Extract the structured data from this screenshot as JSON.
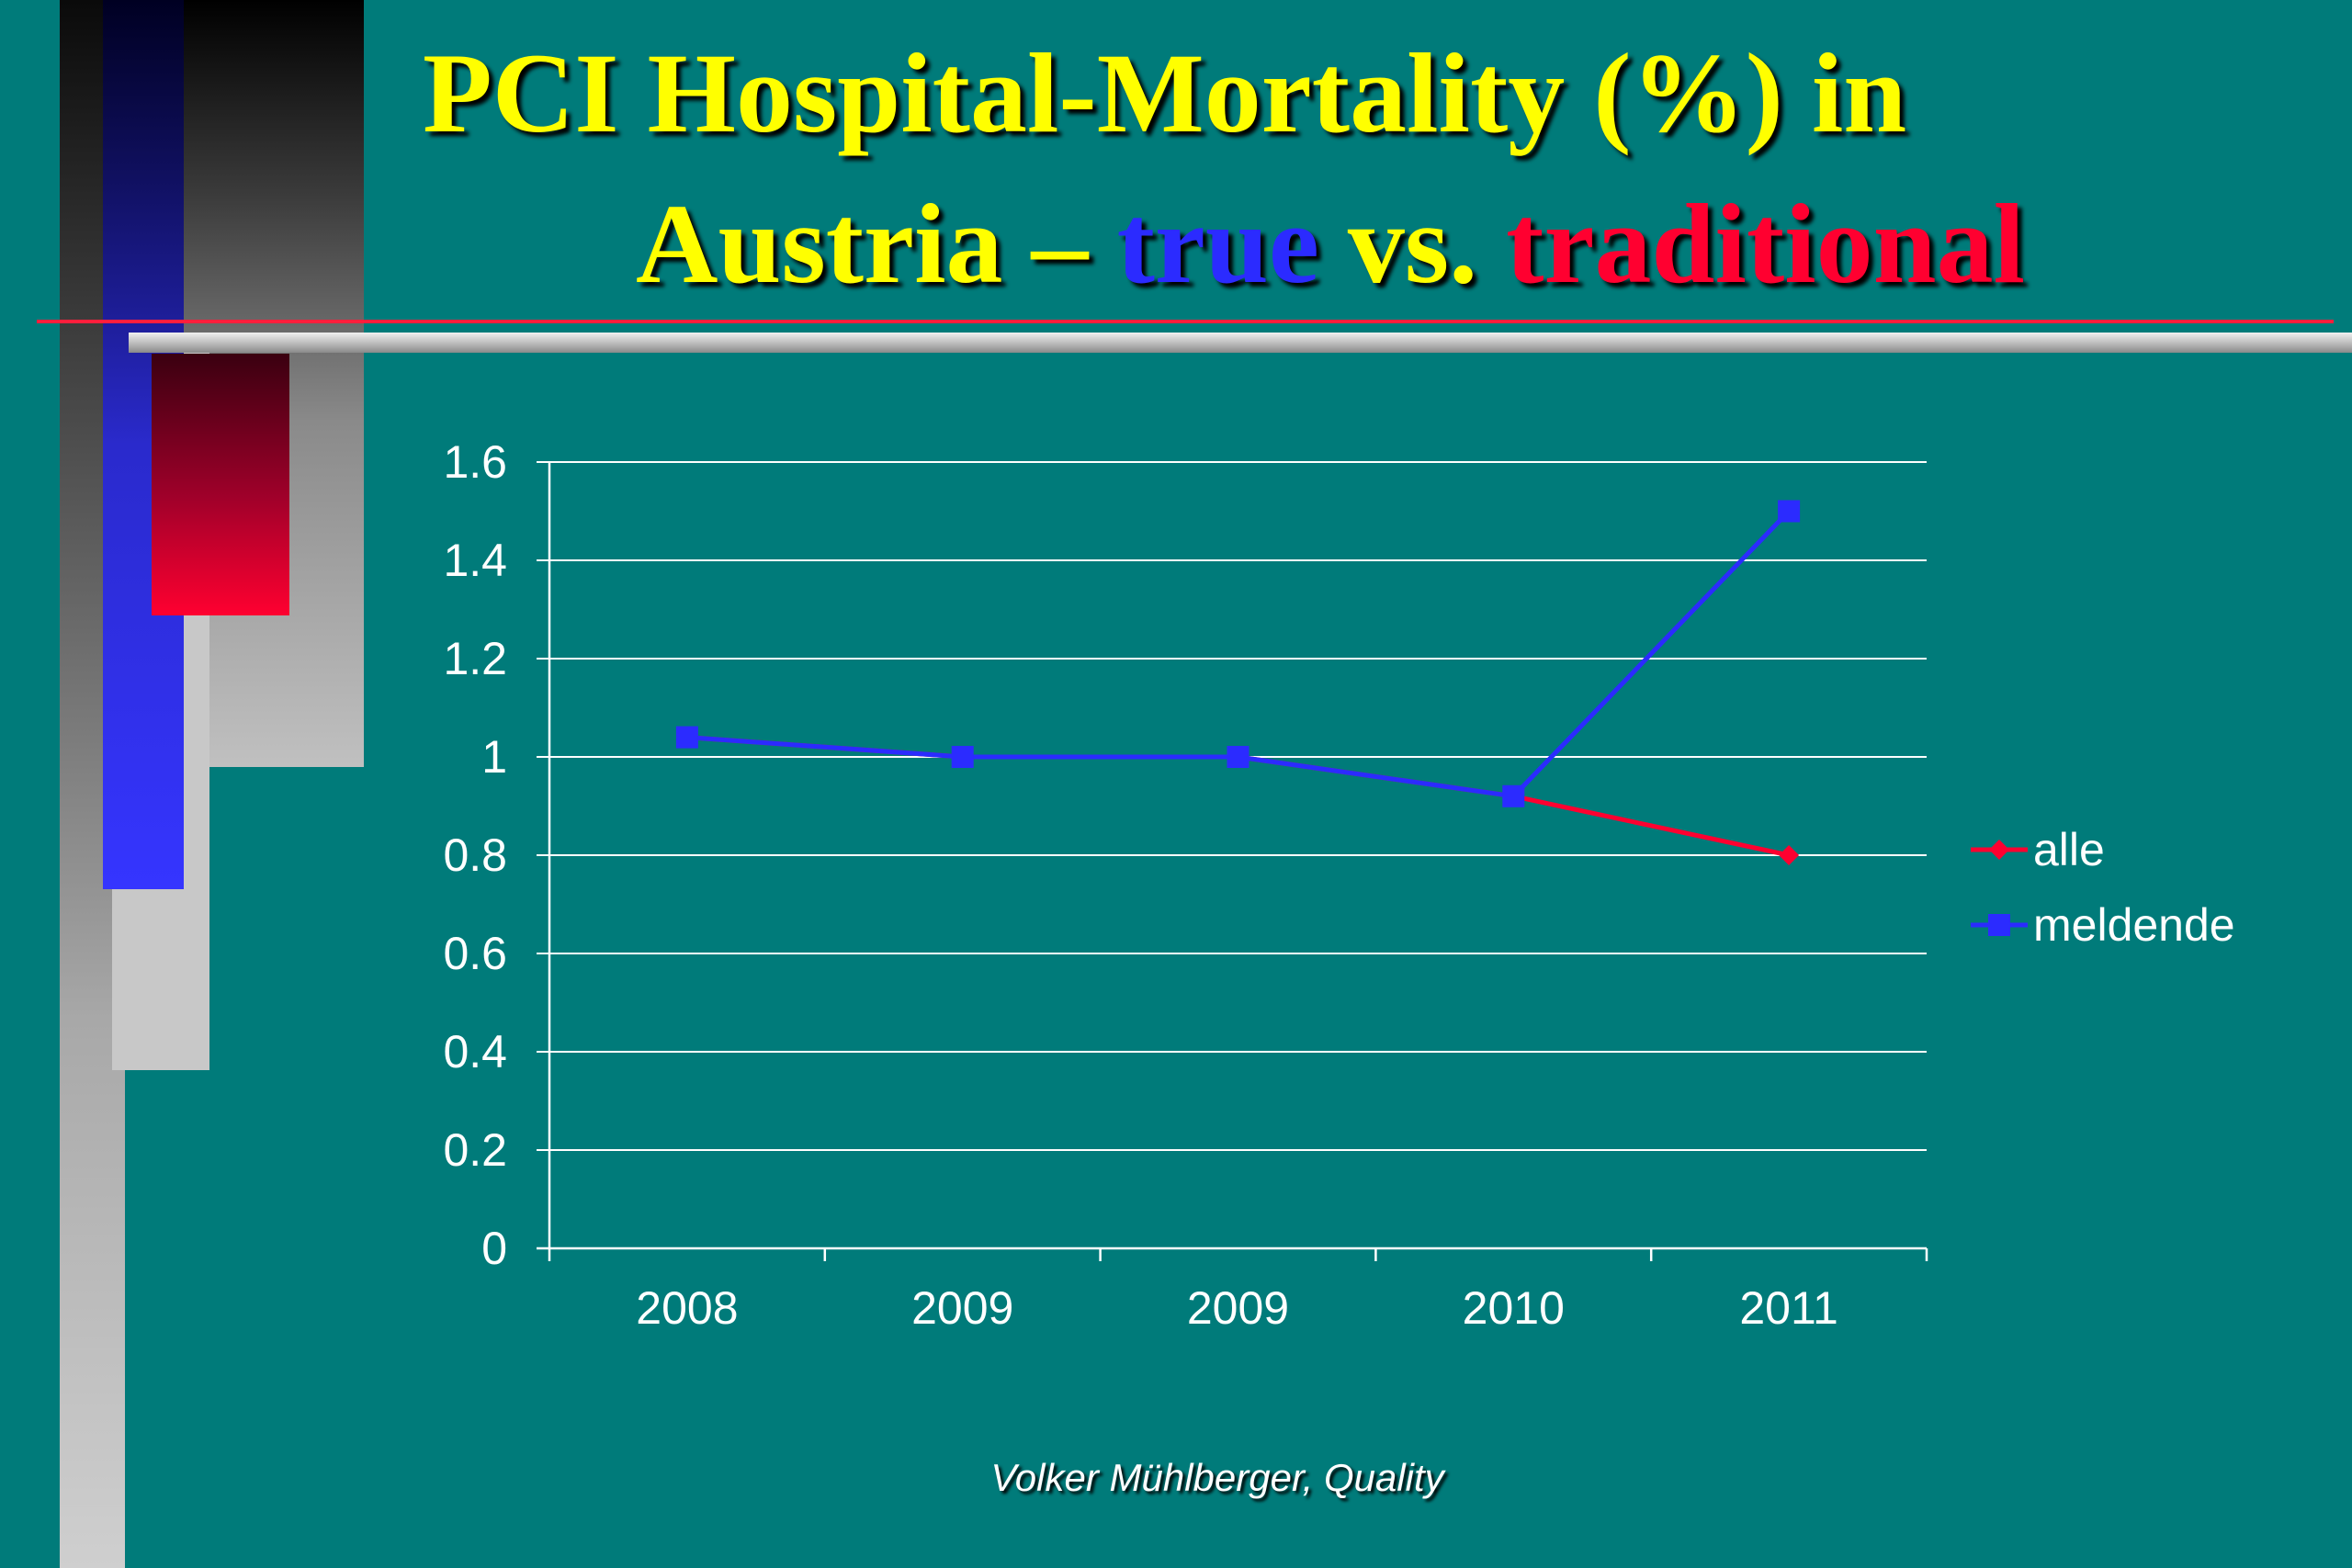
{
  "title": {
    "line1": "PCI Hospital-Mortality (%) in",
    "line2_prefix": "Austria – ",
    "line2_true": "true",
    "line2_vs": " vs. ",
    "line2_traditional": "traditional"
  },
  "footer": "Volker Mühlberger, Quality",
  "colors": {
    "background": "#007b7a",
    "title": "#ffff00",
    "true": "#2b2bff",
    "traditional": "#ff0030"
  },
  "chart_data": {
    "type": "line",
    "categories": [
      "2008",
      "2009",
      "2009",
      "2010",
      "2011"
    ],
    "series": [
      {
        "name": "alle",
        "values": [
          1.04,
          1.0,
          1.0,
          0.92,
          0.8
        ],
        "color": "#ff0030",
        "marker": "diamond"
      },
      {
        "name": "meldende",
        "values": [
          1.04,
          1.0,
          1.0,
          0.92,
          1.5
        ],
        "color": "#2b2bff",
        "marker": "square"
      }
    ],
    "yticks": [
      "0",
      "0.2",
      "0.4",
      "0.6",
      "0.8",
      "1",
      "1.2",
      "1.4",
      "1.6"
    ],
    "ylim": [
      0,
      1.6
    ],
    "grid": true,
    "legend": "right"
  }
}
